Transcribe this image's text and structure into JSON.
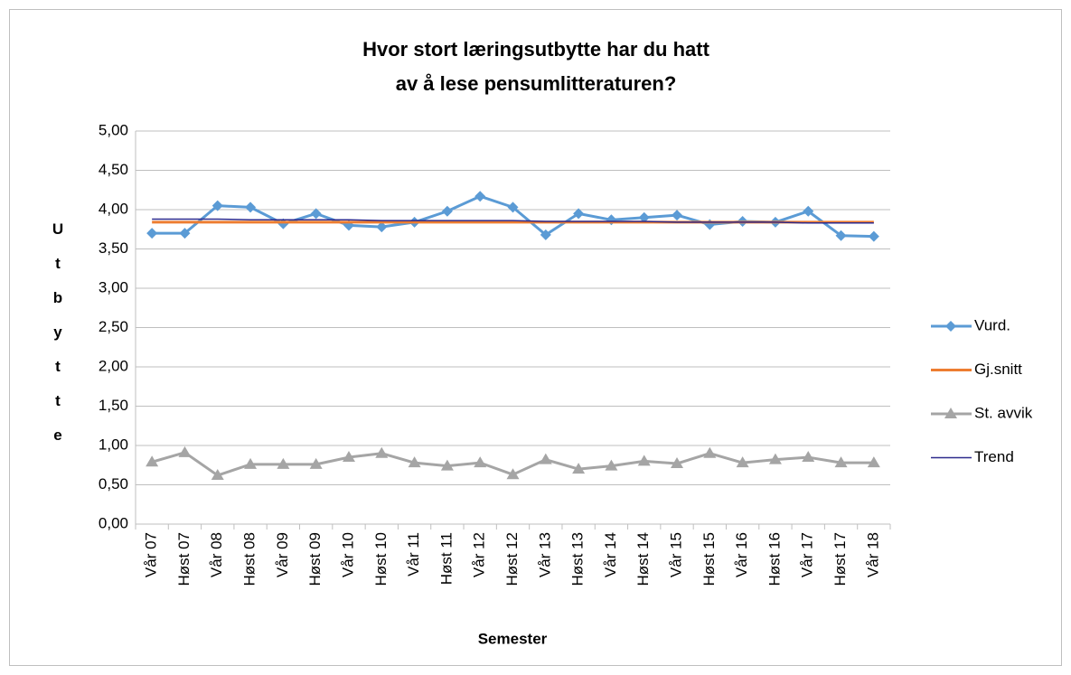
{
  "chart_data": {
    "type": "line",
    "title": [
      "Hvor stort læringsutbytte har du hatt",
      "av å lese pensumlitteraturen?"
    ],
    "x_label": "Semester",
    "y_label": "Utbytte",
    "categories": [
      "Vår 07",
      "Høst 07",
      "Vår 08",
      "Høst 08",
      "Vår 09",
      "Høst 09",
      "Vår 10",
      "Høst 10",
      "Vår 11",
      "Høst 11",
      "Vår 12",
      "Høst 12",
      "Vår 13",
      "Høst 13",
      "Vår 14",
      "Høst 14",
      "Vår 15",
      "Høst 15",
      "Vår 16",
      "Høst 16",
      "Vår 17",
      "Høst 17",
      "Vår 18"
    ],
    "series": [
      {
        "name": "Vurd.",
        "color": "#5b9bd5",
        "marker": "diamond",
        "width": 3,
        "values": [
          3.7,
          3.7,
          4.05,
          4.03,
          3.82,
          3.95,
          3.8,
          3.78,
          3.84,
          3.98,
          4.17,
          4.03,
          3.68,
          3.95,
          3.87,
          3.9,
          3.93,
          3.81,
          3.85,
          3.84,
          3.98,
          3.67,
          3.66
        ]
      },
      {
        "name": "Gj.snitt",
        "color": "#ed7d31",
        "marker": null,
        "width": 3,
        "values": [
          3.84,
          3.84,
          3.84,
          3.84,
          3.84,
          3.84,
          3.84,
          3.84,
          3.84,
          3.84,
          3.84,
          3.84,
          3.84,
          3.84,
          3.84,
          3.84,
          3.84,
          3.84,
          3.84,
          3.84,
          3.84,
          3.84,
          3.84
        ]
      },
      {
        "name": "St. avvik",
        "color": "#a5a5a5",
        "marker": "triangle",
        "width": 3,
        "values": [
          0.79,
          0.91,
          0.62,
          0.76,
          0.76,
          0.76,
          0.85,
          0.9,
          0.78,
          0.74,
          0.78,
          0.63,
          0.82,
          0.7,
          0.74,
          0.8,
          0.77,
          0.9,
          0.78,
          0.82,
          0.85,
          0.78,
          0.78
        ]
      },
      {
        "name": "Trend",
        "color": "#2e2a8c",
        "marker": null,
        "width": 1.5,
        "values": [
          3.88,
          3.88,
          3.88,
          3.87,
          3.87,
          3.87,
          3.87,
          3.86,
          3.86,
          3.86,
          3.86,
          3.86,
          3.85,
          3.85,
          3.85,
          3.85,
          3.84,
          3.84,
          3.84,
          3.84,
          3.83,
          3.83,
          3.83
        ]
      }
    ],
    "ylim": [
      0,
      5
    ],
    "yticks": [
      {
        "value": 0,
        "label": "0,00"
      },
      {
        "value": 0.5,
        "label": "0,50"
      },
      {
        "value": 1,
        "label": "1,00"
      },
      {
        "value": 1.5,
        "label": "1,50"
      },
      {
        "value": 2,
        "label": "2,00"
      },
      {
        "value": 2.5,
        "label": "2,50"
      },
      {
        "value": 3,
        "label": "3,00"
      },
      {
        "value": 3.5,
        "label": "3,50"
      },
      {
        "value": 4,
        "label": "4,00"
      },
      {
        "value": 4.5,
        "label": "4,50"
      },
      {
        "value": 5,
        "label": "5,00"
      }
    ],
    "grid": true,
    "legend": "right"
  }
}
